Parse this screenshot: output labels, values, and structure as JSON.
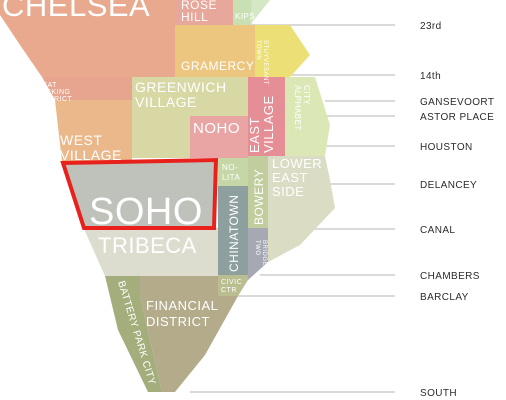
{
  "neighborhoods": [
    {
      "id": "chelsea",
      "label": "CHELSEA",
      "color": "#e8a98e"
    },
    {
      "id": "rose-hill",
      "label_lines": [
        "ROSE",
        "HILL"
      ],
      "color": "#e7a79a"
    },
    {
      "id": "kips-bay",
      "label": "KIPS",
      "color": "#c9e0b4"
    },
    {
      "id": "murray-hill-strip",
      "label": "",
      "color": "#d5e7c4"
    },
    {
      "id": "gramercy",
      "label": "GRAMERCY",
      "color": "#ecc67e"
    },
    {
      "id": "stuyvesant-town",
      "label_lines": [
        "STUYVESANT",
        "TOWN"
      ],
      "color": "#ecdf76"
    },
    {
      "id": "meatpacking",
      "label_lines": [
        "MEAT",
        "PACKING",
        "DISTRICT"
      ],
      "color": "#e7a58f"
    },
    {
      "id": "greenwich-village",
      "label_lines": [
        "GREENWICH",
        "VILLAGE"
      ],
      "color": "#d8d8a4"
    },
    {
      "id": "west-village",
      "label_lines": [
        "WEST",
        "VILLAGE"
      ],
      "color": "#eab88a"
    },
    {
      "id": "noho",
      "label": "NOHO",
      "color": "#e9a4a4"
    },
    {
      "id": "east-village",
      "label_lines": [
        "EAST",
        "VILLAGE"
      ],
      "color": "#e58e96"
    },
    {
      "id": "alphabet-city",
      "label_lines": [
        "ALPHABET",
        "CITY"
      ],
      "color": "#dbe8b6"
    },
    {
      "id": "nolita",
      "label_lines": [
        "NO-",
        "LITA"
      ],
      "color": "#c5d7a6"
    },
    {
      "id": "bowery",
      "label": "BOWERY",
      "color": "#c1cd9c"
    },
    {
      "id": "lower-east-side",
      "label_lines": [
        "LOWER",
        "EAST",
        "SIDE"
      ],
      "color": "#dbdcc4"
    },
    {
      "id": "soho",
      "label": "SOHO",
      "color": "#bec2ba",
      "highlight": "#e8211d"
    },
    {
      "id": "tribeca",
      "label": "TRIBECA",
      "color": "#dcddcf"
    },
    {
      "id": "chinatown",
      "label": "CHINATOWN",
      "color": "#8e9fa0"
    },
    {
      "id": "two-bridges",
      "label_lines": [
        "TWO",
        "BRIDGES"
      ],
      "color": "#a6a8b4"
    },
    {
      "id": "civic-center",
      "label_lines": [
        "CIVIC",
        "CTR"
      ],
      "color": "#b9bd8f"
    },
    {
      "id": "battery-park-city",
      "label": "BATTERY PARK CITY",
      "color": "#a4ae7c"
    },
    {
      "id": "financial-district",
      "label_lines": [
        "FINANCIAL",
        "DISTRICT"
      ],
      "color": "#b3ab8a"
    }
  ],
  "streets": [
    {
      "id": "23rd",
      "label": "23rd"
    },
    {
      "id": "14th",
      "label": "14th"
    },
    {
      "id": "gansevoort",
      "label": "GANSEVOORT"
    },
    {
      "id": "astor-place",
      "label": "ASTOR PLACE"
    },
    {
      "id": "houston",
      "label": "HOUSTON"
    },
    {
      "id": "delancey",
      "label": "DELANCEY"
    },
    {
      "id": "canal",
      "label": "CANAL"
    },
    {
      "id": "chambers",
      "label": "CHAMBERS"
    },
    {
      "id": "barclay",
      "label": "BARCLAY"
    },
    {
      "id": "south",
      "label": "SOUTH"
    }
  ]
}
